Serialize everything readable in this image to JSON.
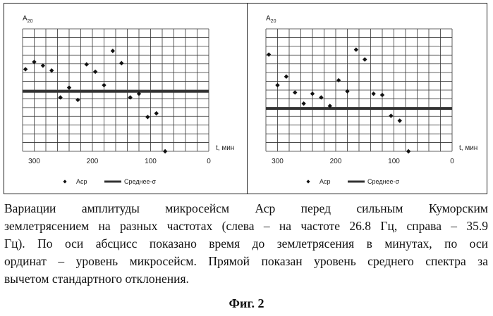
{
  "chart_data": [
    {
      "type": "scatter",
      "ylabel_main": "A",
      "ylabel_sub": "20",
      "xlabel": "t, мин",
      "xlim": [
        320,
        0
      ],
      "ylim": [
        0,
        1
      ],
      "xticks": [
        300,
        200,
        100,
        0
      ],
      "series": [
        {
          "name": "Аср",
          "kind": "points",
          "x": [
            315,
            300,
            285,
            270,
            255,
            240,
            225,
            210,
            195,
            180,
            165,
            150,
            135,
            120,
            105,
            90,
            75
          ],
          "y": [
            0.67,
            0.73,
            0.7,
            0.66,
            0.44,
            0.52,
            0.42,
            0.71,
            0.65,
            0.54,
            0.82,
            0.72,
            0.44,
            0.47,
            0.28,
            0.31,
            0.0
          ]
        },
        {
          "name": "Среднее-σ",
          "kind": "line",
          "y": 0.49
        }
      ]
    },
    {
      "type": "scatter",
      "ylabel_main": "A",
      "ylabel_sub": "20",
      "xlabel": "t, мин",
      "xlim": [
        320,
        0
      ],
      "ylim": [
        0,
        1
      ],
      "xticks": [
        300,
        200,
        100,
        0
      ],
      "series": [
        {
          "name": "Аср",
          "kind": "points",
          "x": [
            315,
            300,
            285,
            270,
            255,
            240,
            225,
            210,
            195,
            180,
            165,
            150,
            135,
            120,
            105,
            90,
            75
          ],
          "y": [
            0.79,
            0.54,
            0.61,
            0.48,
            0.39,
            0.47,
            0.44,
            0.37,
            0.58,
            0.49,
            0.83,
            0.75,
            0.47,
            0.46,
            0.29,
            0.25,
            0.0
          ]
        },
        {
          "name": "Среднее-σ",
          "kind": "line",
          "y": 0.35
        }
      ]
    }
  ],
  "caption": {
    "lines": [
      "Вариации амплитуды микросейсм Аср перед сильным Куморским",
      "землетрясением на разных частотах (слева – на частоте 26.8 Гц, справа – 35.9",
      "Гц). По оси абсцисс показано время до землетрясения в минутах, по оси",
      "ординат – уровень микросейсм. Прямой показан уровень среднего спектра за",
      "вычетом стандартного отклонения."
    ]
  },
  "figure_label": "Фиг. 2"
}
